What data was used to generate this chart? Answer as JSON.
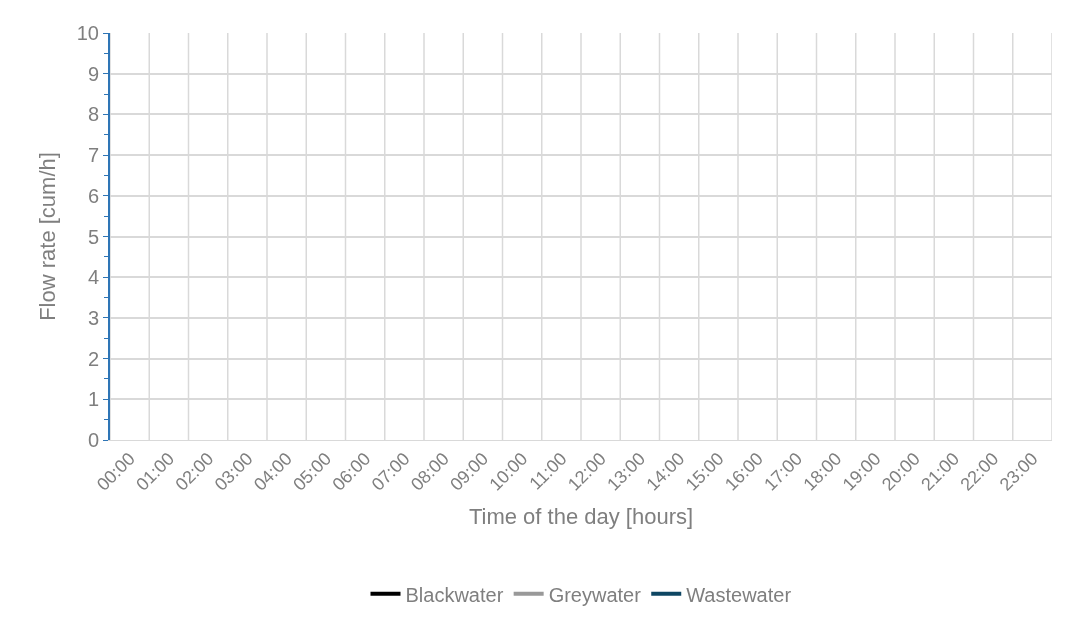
{
  "chart_data": {
    "type": "line",
    "xlabel": "Time of the day [hours]",
    "ylabel": "Flow rate [cum/h]",
    "categories": [
      "00:00",
      "01:00",
      "02:00",
      "03:00",
      "04:00",
      "05:00",
      "06:00",
      "07:00",
      "08:00",
      "09:00",
      "10:00",
      "11:00",
      "12:00",
      "13:00",
      "14:00",
      "15:00",
      "16:00",
      "17:00",
      "18:00",
      "19:00",
      "20:00",
      "21:00",
      "22:00",
      "23:00"
    ],
    "series": [
      {
        "name": "Blackwater",
        "color": "#000000",
        "values": [
          null,
          null,
          null,
          null,
          null,
          null,
          null,
          null,
          null,
          null,
          null,
          null,
          null,
          null,
          null,
          null,
          null,
          null,
          null,
          null,
          null,
          null,
          null,
          null
        ]
      },
      {
        "name": "Greywater",
        "color": "#999999",
        "values": [
          null,
          null,
          null,
          null,
          null,
          null,
          null,
          null,
          null,
          null,
          null,
          null,
          null,
          null,
          null,
          null,
          null,
          null,
          null,
          null,
          null,
          null,
          null,
          null
        ]
      },
      {
        "name": "Wastewater",
        "color": "#0e4663",
        "values": [
          null,
          null,
          null,
          null,
          null,
          null,
          null,
          null,
          null,
          null,
          null,
          null,
          null,
          null,
          null,
          null,
          null,
          null,
          null,
          null,
          null,
          null,
          null,
          null
        ]
      }
    ],
    "ylim": [
      0,
      10
    ],
    "yticks": [
      0,
      1,
      2,
      3,
      4,
      5,
      6,
      7,
      8,
      9,
      10
    ],
    "grid": true,
    "legend": "bottom",
    "marker": "none",
    "line_style": "solid"
  }
}
